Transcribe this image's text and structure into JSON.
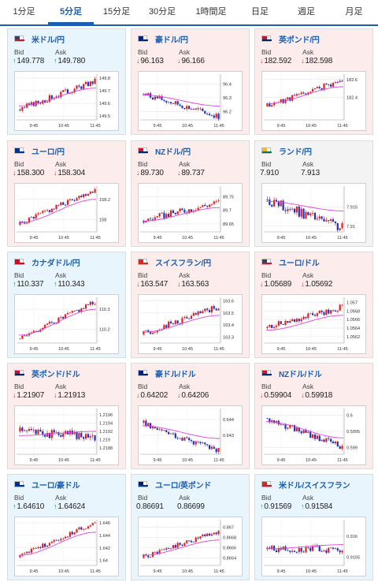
{
  "tabs": [
    "1分足",
    "5分足",
    "15分足",
    "30分足",
    "1時間足",
    "日足",
    "週足",
    "月足"
  ],
  "active_tab": "5分足",
  "labels": {
    "bid": "Bid",
    "ask": "Ask"
  },
  "chart_data": [
    {
      "type": "candlestick",
      "pair": "米ドル/円",
      "bid": "149.778",
      "ask": "149.780",
      "yticks": [
        "149.8",
        "149.7",
        "149.6",
        "149.5"
      ],
      "xticks": [
        "9:45",
        "10:45",
        "11:45"
      ],
      "ylim": [
        149.47,
        149.83
      ],
      "start": 149.55,
      "end": 149.775,
      "ma": [
        149.58,
        149.72
      ],
      "vol": 0.022,
      "seed": 3
    },
    {
      "type": "candlestick",
      "pair": "豪ドル/円",
      "bid": "96.163",
      "ask": "96.166",
      "yticks": [
        "96.4",
        "96.3",
        "96.2"
      ],
      "xticks": [
        "9:45",
        "10:45",
        "11:45"
      ],
      "ylim": [
        96.14,
        96.47
      ],
      "start": 96.33,
      "end": 96.163,
      "ma": [
        96.32,
        96.24
      ],
      "vol": 0.02,
      "seed": 7
    },
    {
      "type": "candlestick",
      "pair": "英ポンド/円",
      "bid": "182.592",
      "ask": "182.598",
      "yticks": [
        "182.6",
        "182.4"
      ],
      "xticks": [
        "9:45",
        "10:45",
        "11:45"
      ],
      "ylim": [
        182.15,
        182.66
      ],
      "start": 182.3,
      "end": 182.59,
      "ma": [
        182.33,
        182.52
      ],
      "vol": 0.03,
      "seed": 11
    },
    {
      "type": "candlestick",
      "pair": "ユーロ/円",
      "bid": "158.300",
      "ask": "158.304",
      "yticks": [
        "158.2",
        "158"
      ],
      "xticks": [
        "9:45",
        "10:45",
        "11:45"
      ],
      "ylim": [
        157.88,
        158.33
      ],
      "start": 157.95,
      "end": 158.3,
      "ma": [
        157.97,
        158.2
      ],
      "vol": 0.025,
      "seed": 5
    },
    {
      "type": "candlestick",
      "pair": "NZドル/円",
      "bid": "89.730",
      "ask": "89.737",
      "yticks": [
        "89.75",
        "89.7",
        "89.65"
      ],
      "xticks": [
        "9:45",
        "10:45",
        "11:45"
      ],
      "ylim": [
        89.62,
        89.79
      ],
      "start": 89.66,
      "end": 89.73,
      "ma": [
        89.66,
        89.71
      ],
      "vol": 0.012,
      "seed": 9
    },
    {
      "type": "candlestick",
      "pair": "ランド/円",
      "bid": "7.910",
      "ask": "7.913",
      "yticks": [
        "7.915",
        "7.91"
      ],
      "xticks": [
        "9:45",
        "10:45",
        "11:45"
      ],
      "ylim": [
        7.9085,
        7.9205
      ],
      "start": 7.917,
      "end": 7.9095,
      "ma": [
        7.9165,
        7.914
      ],
      "vol": 0.0012,
      "seed": 13
    },
    {
      "type": "candlestick",
      "pair": "カナダドル/円",
      "bid": "110.337",
      "ask": "110.343",
      "yticks": [
        "110.3",
        "110.2"
      ],
      "xticks": [
        "9:45",
        "10:45",
        "11:45"
      ],
      "ylim": [
        110.13,
        110.36
      ],
      "start": 110.15,
      "end": 110.337,
      "ma": [
        110.17,
        110.3
      ],
      "vol": 0.013,
      "seed": 2
    },
    {
      "type": "candlestick",
      "pair": "スイスフラン/円",
      "bid": "163.547",
      "ask": "163.563",
      "yticks": [
        "163.6",
        "163.5",
        "163.4",
        "163.3"
      ],
      "xticks": [
        "9:45",
        "10:45",
        "11:45"
      ],
      "ylim": [
        163.25,
        163.63
      ],
      "start": 163.32,
      "end": 163.55,
      "ma": [
        163.34,
        163.48
      ],
      "vol": 0.025,
      "seed": 17
    },
    {
      "type": "candlestick",
      "pair": "ユーロ/ドル",
      "bid": "1.05689",
      "ask": "1.05692",
      "yticks": [
        "1.057",
        "1.0568",
        "1.0566",
        "1.0564",
        "1.0562"
      ],
      "xticks": [
        "9:45",
        "10:45",
        "11:45"
      ],
      "ylim": [
        1.05605,
        1.05712
      ],
      "start": 1.0564,
      "end": 1.05689,
      "ma": [
        1.05635,
        1.0567
      ],
      "vol": 7e-05,
      "seed": 19
    },
    {
      "type": "candlestick",
      "pair": "英ポンド/ドル",
      "bid": "1.21907",
      "ask": "1.21913",
      "yticks": [
        "1.2196",
        "1.2194",
        "1.2192",
        "1.219",
        "1.2188"
      ],
      "xticks": [
        "9:45",
        "10:45",
        "11:45"
      ],
      "ylim": [
        1.21865,
        1.21975
      ],
      "start": 1.2192,
      "end": 1.21907,
      "ma": [
        1.2191,
        1.2192
      ],
      "vol": 0.0001,
      "seed": 23
    },
    {
      "type": "candlestick",
      "pair": "豪ドル/ドル",
      "bid": "0.64202",
      "ask": "0.64206",
      "yticks": [
        "0.644",
        "0.643"
      ],
      "xticks": [
        "9:45",
        "10:45",
        "11:45"
      ],
      "ylim": [
        0.6418,
        0.6447
      ],
      "start": 0.6438,
      "end": 0.64202,
      "ma": [
        0.6436,
        0.6428
      ],
      "vol": 0.00018,
      "seed": 29
    },
    {
      "type": "candlestick",
      "pair": "NZドル/ドル",
      "bid": "0.59904",
      "ask": "0.59918",
      "yticks": [
        "0.6",
        "0.5995",
        "0.599"
      ],
      "xticks": [
        "9:45",
        "10:45",
        "11:45"
      ],
      "ylim": [
        0.5988,
        0.6002
      ],
      "start": 0.5999,
      "end": 0.59904,
      "ma": [
        0.5998,
        0.5993
      ],
      "vol": 9e-05,
      "seed": 31
    },
    {
      "type": "candlestick",
      "pair": "ユーロ/豪ドル",
      "bid": "1.64610",
      "ask": "1.64624",
      "yticks": [
        "1.646",
        "1.644",
        "1.642",
        "1.64"
      ],
      "xticks": [
        "9:45",
        "10:45",
        "11:45"
      ],
      "ylim": [
        1.6392,
        1.6465
      ],
      "start": 1.6405,
      "end": 1.6461,
      "ma": [
        1.6408,
        1.6445
      ],
      "vol": 0.00035,
      "seed": 37
    },
    {
      "type": "candlestick",
      "pair": "ユーロ/英ポンド",
      "bid": "0.86691",
      "ask": "0.86699",
      "yticks": [
        "0.867",
        "0.8668",
        "0.8666",
        "0.8664"
      ],
      "xticks": [
        "9:45",
        "10:45",
        "11:45"
      ],
      "ylim": [
        0.86625,
        0.86715
      ],
      "start": 0.8664,
      "end": 0.86691,
      "ma": [
        0.86645,
        0.86675
      ],
      "vol": 5e-05,
      "seed": 41
    },
    {
      "type": "candlestick",
      "pair": "米ドル/スイスフラン",
      "bid": "0.91569",
      "ask": "0.91584",
      "yticks": [
        "0.916",
        "0.9155"
      ],
      "xticks": [
        "9:45",
        "10:45",
        "11:45"
      ],
      "ylim": [
        0.9153,
        0.9164
      ],
      "start": 0.9157,
      "end": 0.91569,
      "ma": [
        0.9157,
        0.9158
      ],
      "vol": 8e-05,
      "seed": 43
    }
  ],
  "cards": [
    {
      "trend": "up",
      "dir": "up",
      "flag": [
        "#b22234",
        "#3c3b6e"
      ]
    },
    {
      "trend": "down",
      "dir": "down",
      "flag": [
        "#00247d",
        "#00247d"
      ]
    },
    {
      "trend": "down",
      "dir": "down",
      "flag": [
        "#012169",
        "#c8102e"
      ]
    },
    {
      "trend": "down",
      "dir": "down",
      "flag": [
        "#003399",
        "#003399"
      ]
    },
    {
      "trend": "down",
      "dir": "down",
      "flag": [
        "#00247d",
        "#cc142b"
      ]
    },
    {
      "trend": "flat",
      "dir": "none",
      "flag": [
        "#007a4d",
        "#ffb612"
      ]
    },
    {
      "trend": "up",
      "dir": "up",
      "flag": [
        "#d80621",
        "#d80621"
      ]
    },
    {
      "trend": "down",
      "dir": "down",
      "flag": [
        "#d52b1e",
        "#d52b1e"
      ]
    },
    {
      "trend": "down",
      "dir": "down",
      "flag": [
        "#b22234",
        "#3c3b6e"
      ]
    },
    {
      "trend": "down",
      "dir": "down",
      "flag": [
        "#012169",
        "#c8102e"
      ]
    },
    {
      "trend": "down",
      "dir": "down",
      "flag": [
        "#00247d",
        "#00247d"
      ]
    },
    {
      "trend": "down",
      "dir": "down",
      "flag": [
        "#00247d",
        "#cc142b"
      ]
    },
    {
      "trend": "up",
      "dir": "up",
      "flag": [
        "#003399",
        "#003399"
      ]
    },
    {
      "trend": "up",
      "dir": "none",
      "flag": [
        "#003399",
        "#012169"
      ]
    },
    {
      "trend": "up",
      "dir": "up",
      "flag": [
        "#b22234",
        "#d52b1e"
      ]
    }
  ]
}
